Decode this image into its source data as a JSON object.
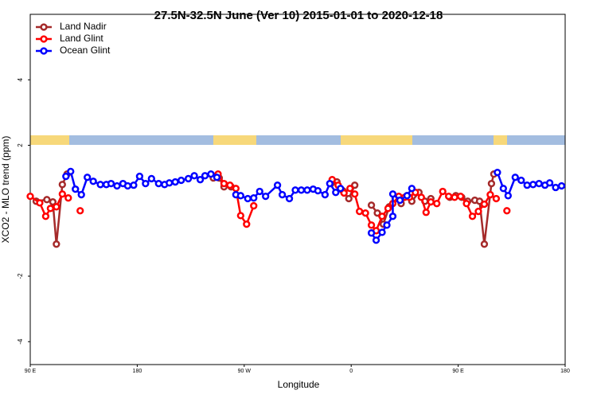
{
  "chart_data": {
    "type": "line",
    "title": "27.5N-32.5N June (Ver 10)   2015-01-01 to 2020-12-18",
    "xlabel": "Longitude",
    "ylabel": "XCO2 - MLO trend (ppm)",
    "xlim": [
      90,
      540
    ],
    "ylim": [
      -4.7,
      6.0
    ],
    "xticks": [
      {
        "value": 90,
        "label": "90 E"
      },
      180,
      {
        "value": 270,
        "label": "90 W"
      },
      {
        "value": 360,
        "label": "0"
      },
      {
        "value": 450,
        "label": "90 E"
      },
      {
        "value": 540,
        "label": "180"
      }
    ],
    "yticks": [
      -4,
      -2,
      2,
      4
    ],
    "legend": "top-left",
    "series": [
      {
        "name": "Land Nadir",
        "color": "#a52a2a",
        "x": [
          95,
          104,
          109,
          112,
          117,
          121,
          null,
          244,
          249,
          253,
          259,
          null,
          343,
          348,
          353,
          358,
          363,
          null,
          377,
          382,
          387,
          392,
          397,
          402,
          407,
          411,
          417,
          422,
          427,
          null,
          443,
          448,
          453,
          458,
          464,
          468,
          472,
          478,
          480
        ],
        "values": [
          0.29,
          0.34,
          0.27,
          -1.02,
          0.8,
          1.12,
          null,
          1.0,
          1.0,
          0.73,
          0.73,
          null,
          0.83,
          0.88,
          0.61,
          0.37,
          0.78,
          null,
          0.17,
          -0.07,
          -0.41,
          0.12,
          0.37,
          0.22,
          0.46,
          0.29,
          0.56,
          0.29,
          0.37,
          null,
          0.41,
          0.46,
          0.41,
          0.29,
          0.32,
          0.29,
          -1.02,
          0.83,
          1.12
        ]
      },
      {
        "name": "Land Glint",
        "color": "#ff0000",
        "x": [
          90,
          98,
          103,
          107,
          112,
          117,
          122,
          null,
          132,
          null,
          248,
          253,
          258,
          263,
          267,
          272,
          278,
          null,
          344,
          349,
          354,
          359,
          363,
          367,
          372,
          377,
          381,
          386,
          391,
          395,
          400,
          405,
          409,
          414,
          419,
          423,
          427,
          432,
          437,
          442,
          447,
          452,
          457,
          462,
          467,
          472,
          477,
          482,
          null,
          491
        ],
        "values": [
          0.44,
          0.24,
          -0.17,
          0.07,
          0.12,
          0.51,
          0.39,
          null,
          0.0,
          null,
          1.12,
          0.83,
          0.78,
          0.68,
          -0.15,
          -0.41,
          0.15,
          null,
          0.95,
          0.78,
          0.54,
          0.68,
          0.51,
          -0.02,
          -0.07,
          -0.44,
          -0.61,
          -0.17,
          0.07,
          0.22,
          0.44,
          0.41,
          0.41,
          0.56,
          0.41,
          -0.05,
          0.27,
          0.22,
          0.59,
          0.44,
          0.41,
          0.44,
          0.22,
          -0.17,
          -0.02,
          0.2,
          0.49,
          0.37,
          null,
          0.0
        ]
      },
      {
        "name": "Ocean Glint",
        "color": "#0000ff",
        "x": [
          120,
          124,
          128,
          133,
          138,
          143,
          149,
          154,
          158,
          163,
          168,
          172,
          177,
          182,
          187,
          192,
          198,
          203,
          207,
          212,
          217,
          223,
          228,
          233,
          237,
          242,
          247,
          null,
          263,
          267,
          273,
          278,
          283,
          288,
          298,
          302,
          308,
          313,
          318,
          323,
          328,
          332,
          338,
          342,
          347,
          351,
          null,
          377,
          381,
          386,
          390,
          395,
          395,
          401,
          407,
          411,
          null,
          483,
          488,
          492,
          498,
          503,
          508,
          513,
          518,
          523,
          527,
          532,
          537
        ],
        "values": [
          1.05,
          1.2,
          0.66,
          0.49,
          1.02,
          0.9,
          0.8,
          0.8,
          0.83,
          0.76,
          0.83,
          0.76,
          0.78,
          1.05,
          0.83,
          0.98,
          0.83,
          0.8,
          0.85,
          0.88,
          0.93,
          0.98,
          1.07,
          0.95,
          1.07,
          1.12,
          1.02,
          null,
          0.49,
          0.46,
          0.37,
          0.39,
          0.59,
          0.44,
          0.78,
          0.49,
          0.37,
          0.63,
          0.63,
          0.63,
          0.66,
          0.61,
          0.49,
          0.83,
          0.56,
          0.68,
          null,
          -0.68,
          -0.9,
          -0.66,
          -0.44,
          -0.17,
          0.51,
          0.32,
          0.46,
          0.68,
          null,
          1.17,
          0.68,
          0.46,
          1.02,
          0.93,
          0.78,
          0.8,
          0.83,
          0.78,
          0.85,
          0.71,
          0.76
        ]
      }
    ]
  }
}
